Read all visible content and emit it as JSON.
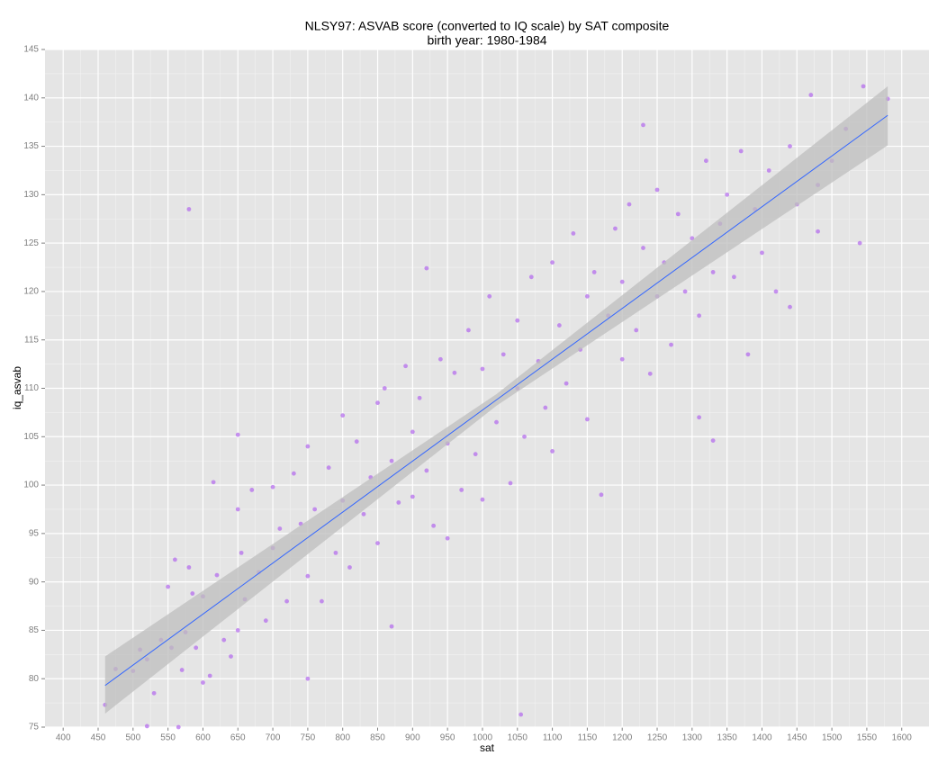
{
  "chart_data": {
    "type": "scatter",
    "title": "NLSY97: ASVAB score (converted to IQ scale) by SAT composite",
    "subtitle": "birth year: 1980-1984",
    "x_label": "sat",
    "y_label": "iq_asvab",
    "color": "#b266ee",
    "line_color": "#3366ff",
    "band_color": "#bdbdbd",
    "grid": true,
    "xlim": [
      374,
      1639
    ],
    "ylim": [
      75,
      145
    ],
    "xticks": [
      400,
      450,
      500,
      550,
      600,
      650,
      700,
      750,
      800,
      850,
      900,
      950,
      1000,
      1050,
      1100,
      1150,
      1200,
      1250,
      1300,
      1350,
      1400,
      1450,
      1500,
      1550,
      1600
    ],
    "yticks": [
      75,
      80,
      85,
      90,
      95,
      100,
      105,
      110,
      115,
      120,
      125,
      130,
      135,
      140,
      145
    ],
    "x": [
      460,
      475,
      500,
      510,
      520,
      530,
      540,
      550,
      555,
      560,
      570,
      575,
      580,
      585,
      590,
      600,
      600,
      610,
      620,
      630,
      640,
      650,
      650,
      655,
      660,
      670,
      680,
      690,
      700,
      700,
      710,
      720,
      730,
      740,
      750,
      750,
      760,
      770,
      780,
      790,
      800,
      800,
      810,
      820,
      830,
      840,
      850,
      850,
      860,
      870,
      880,
      890,
      900,
      900,
      910,
      920,
      930,
      940,
      950,
      950,
      960,
      970,
      980,
      990,
      1000,
      1000,
      1010,
      1020,
      1030,
      1040,
      1050,
      1050,
      1060,
      1070,
      1080,
      1090,
      1100,
      1100,
      1110,
      1120,
      1130,
      1140,
      1150,
      1150,
      1160,
      1170,
      1180,
      1190,
      1200,
      1200,
      1210,
      1220,
      1230,
      1240,
      1250,
      1250,
      1260,
      1270,
      1280,
      1290,
      1300,
      1310,
      1320,
      1330,
      1340,
      1350,
      1360,
      1370,
      1380,
      1390,
      1400,
      1410,
      1420,
      1440,
      1450,
      1470,
      1480,
      1500,
      1520,
      1540,
      1545,
      1580,
      580,
      1055,
      920,
      1310,
      1330,
      650,
      615,
      520,
      565,
      1480,
      1440,
      1230,
      870,
      750
    ],
    "y": [
      77.3,
      81.0,
      80.8,
      83.0,
      82.0,
      78.5,
      84.0,
      89.5,
      83.2,
      92.3,
      80.9,
      84.8,
      91.5,
      88.8,
      83.2,
      79.6,
      88.5,
      80.3,
      90.7,
      84.0,
      82.3,
      97.5,
      85.0,
      93.0,
      88.2,
      99.5,
      91.0,
      86.0,
      99.8,
      93.5,
      95.5,
      88.0,
      101.2,
      96.0,
      90.6,
      104.0,
      97.5,
      88.0,
      101.8,
      93.0,
      107.2,
      98.4,
      91.5,
      104.5,
      97.0,
      100.8,
      108.5,
      94.0,
      110.0,
      102.5,
      98.2,
      112.3,
      98.8,
      105.5,
      109.0,
      101.5,
      95.8,
      113.0,
      104.3,
      94.5,
      111.6,
      99.5,
      116.0,
      103.2,
      112.0,
      98.5,
      119.5,
      106.5,
      113.5,
      100.2,
      117.0,
      110.0,
      105.0,
      121.5,
      112.8,
      108.0,
      123.0,
      103.5,
      116.5,
      110.5,
      126.0,
      114.0,
      119.5,
      106.8,
      122.0,
      99.0,
      117.5,
      126.5,
      113.0,
      121.0,
      129.0,
      116.0,
      124.5,
      111.5,
      119.5,
      130.5,
      123.0,
      114.5,
      128.0,
      120.0,
      125.5,
      117.5,
      133.5,
      122.0,
      127.0,
      130.0,
      121.5,
      134.5,
      113.5,
      128.5,
      124.0,
      132.5,
      120.0,
      135.0,
      129.0,
      140.3,
      131.0,
      133.5,
      136.8,
      125.0,
      141.2,
      139.9,
      128.5,
      76.3,
      122.4,
      107.0,
      104.6,
      105.2,
      100.3,
      75.1,
      75.0,
      126.2,
      118.4,
      137.2,
      85.4,
      80.0
    ],
    "fit": {
      "x": [
        460,
        1020,
        1580
      ],
      "y": [
        79.3,
        108.8,
        138.2
      ],
      "lower": [
        76.4,
        108.2,
        135.1
      ],
      "upper": [
        82.3,
        109.4,
        141.2
      ]
    }
  }
}
